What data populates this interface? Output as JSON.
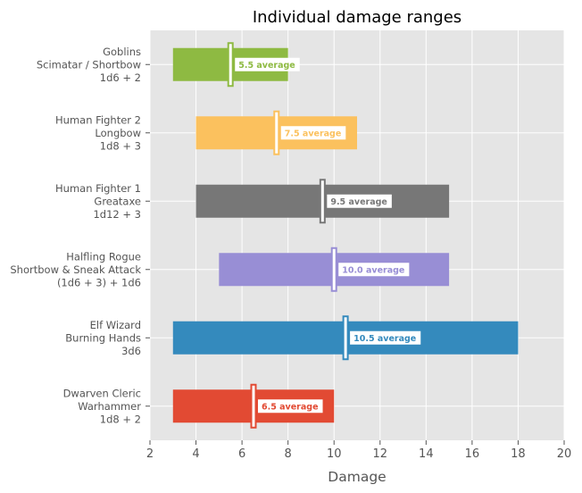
{
  "chart_data": {
    "type": "bar",
    "orientation": "horizontal-range",
    "title": "Individual damage ranges",
    "xlabel": "Damage",
    "ylabel": "",
    "xlim": [
      2,
      20
    ],
    "xticks": [
      "2",
      "4",
      "6",
      "8",
      "10",
      "12",
      "14",
      "16",
      "18",
      "20"
    ],
    "grid": true,
    "series": [
      {
        "label_lines": [
          "Goblins",
          "Scimatar / Shortbow",
          "1d6 + 2"
        ],
        "min": 3,
        "max": 8,
        "average": 5.5,
        "avg_label": "5.5 average",
        "color": "#8eba42"
      },
      {
        "label_lines": [
          "Human Fighter 2",
          "Longbow",
          "1d8 + 3"
        ],
        "min": 4,
        "max": 11,
        "average": 7.5,
        "avg_label": "7.5 average",
        "color": "#fbc15e"
      },
      {
        "label_lines": [
          "Human Fighter 1",
          "Greataxe",
          "1d12 + 3"
        ],
        "min": 4,
        "max": 15,
        "average": 9.5,
        "avg_label": "9.5 average",
        "color": "#777777"
      },
      {
        "label_lines": [
          "Halfling Rogue",
          "Shortbow & Sneak Attack",
          "(1d6 + 3) + 1d6"
        ],
        "min": 5,
        "max": 15,
        "average": 10.0,
        "avg_label": "10.0 average",
        "color": "#988ed5"
      },
      {
        "label_lines": [
          "Elf Wizard",
          "Burning Hands",
          "3d6"
        ],
        "min": 3,
        "max": 18,
        "average": 10.5,
        "avg_label": "10.5 average",
        "color": "#348abd"
      },
      {
        "label_lines": [
          "Dwarven Cleric",
          "Warhammer",
          "1d8 + 2"
        ],
        "min": 3,
        "max": 10,
        "average": 6.5,
        "avg_label": "6.5 average",
        "color": "#e24a33"
      }
    ]
  }
}
